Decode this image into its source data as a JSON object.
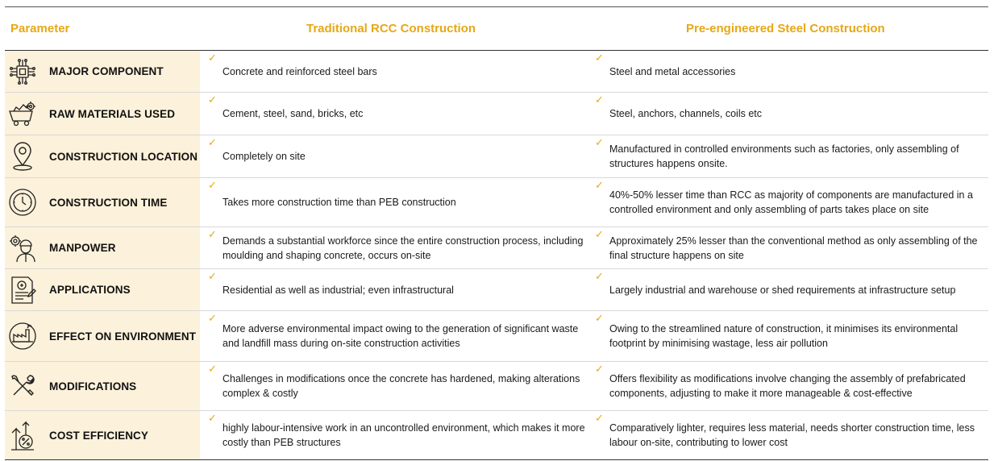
{
  "header": {
    "parameter": "Parameter",
    "rcc": "Traditional RCC Construction",
    "peb": "Pre-engineered Steel Construction"
  },
  "colors": {
    "accent": "#E6A817",
    "param_bg": "#FCF1DA"
  },
  "check_glyph": "✓",
  "rows": [
    {
      "icon": "microchip-icon",
      "parameter": "MAJOR COMPONENT",
      "rcc": "Concrete and reinforced steel bars",
      "peb": "Steel and metal accessories"
    },
    {
      "icon": "mine-cart-icon",
      "parameter": "RAW MATERIALS USED",
      "rcc": "Cement, steel, sand, bricks, etc",
      "peb": "Steel, anchors, channels, coils etc"
    },
    {
      "icon": "location-pin-icon",
      "parameter": "CONSTRUCTION LOCATION",
      "rcc": "Completely on site",
      "peb": "Manufactured in controlled environments such as factories, only assembling of structures happens onsite."
    },
    {
      "icon": "stopwatch-icon",
      "parameter": "CONSTRUCTION TIME",
      "rcc": "Takes more construction time than PEB construction",
      "peb": "40%-50% lesser time than RCC as majority of components are manufactured in a controlled environment and only assembling of parts takes place on site"
    },
    {
      "icon": "worker-gears-icon",
      "parameter": "MANPOWER",
      "rcc": "Demands a substantial workforce since the entire construction process, including moulding and shaping concrete, occurs on-site",
      "peb": "Approximately 25% lesser than the conventional method as only assembling of the final structure happens on site"
    },
    {
      "icon": "document-user-icon",
      "parameter": "APPLICATIONS",
      "rcc": "Residential as well as industrial; even infrastructural",
      "peb": "Largely industrial and warehouse or shed requirements at infrastructure setup"
    },
    {
      "icon": "factory-environment-icon",
      "parameter": "EFFECT ON ENVIRONMENT",
      "rcc": "More adverse environmental impact owing to the generation of significant waste and landfill mass during on-site construction activities",
      "peb": "Owing to the streamlined nature of construction, it minimises its environmental footprint by minimising wastage, less air pollution"
    },
    {
      "icon": "tools-icon",
      "parameter": "MODIFICATIONS",
      "rcc": "Challenges in modifications once the concrete has hardened, making alterations complex & costly",
      "peb": "Offers flexibility as modifications involve changing the assembly of prefabricated components, adjusting to make it more manageable & cost-effective"
    },
    {
      "icon": "cost-growth-icon",
      "parameter": "COST EFFICIENCY",
      "rcc": "highly labour-intensive work in an uncontrolled environment, which makes it more costly than PEB structures",
      "peb": "Comparatively lighter, requires less material, needs shorter construction time, less labour on-site, contributing to lower cost"
    }
  ]
}
